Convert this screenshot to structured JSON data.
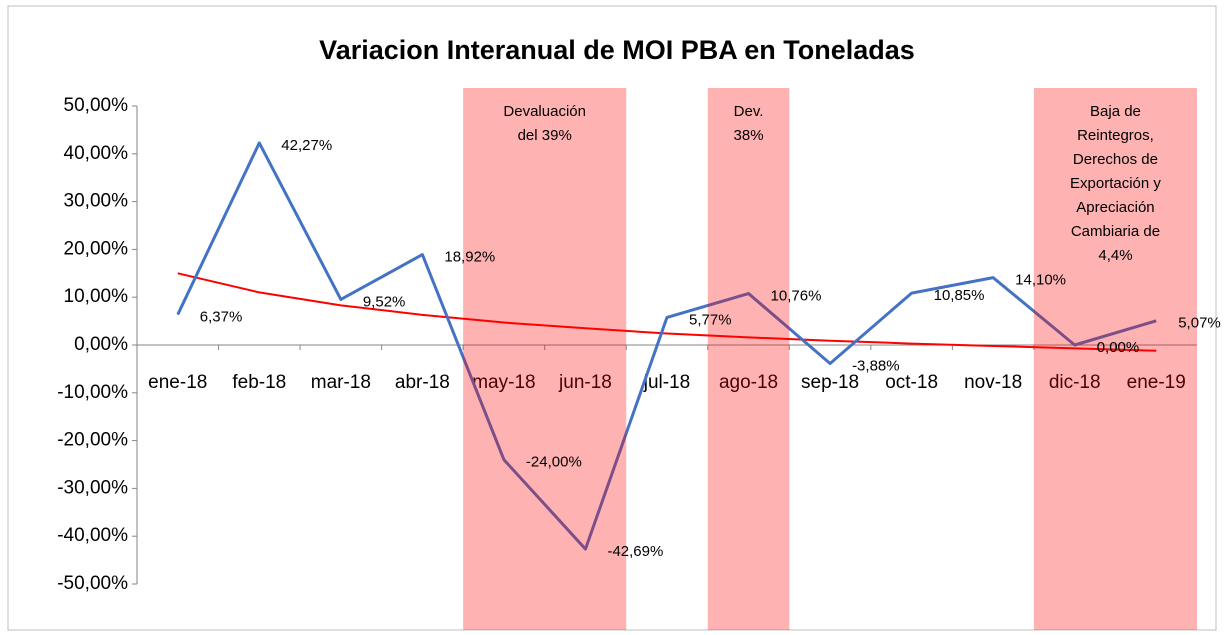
{
  "chart_data": {
    "type": "line",
    "title": "Variacion Interanual de MOI PBA en Toneladas",
    "categories": [
      "ene-18",
      "feb-18",
      "mar-18",
      "abr-18",
      "may-18",
      "jun-18",
      "jul-18",
      "ago-18",
      "sep-18",
      "oct-18",
      "nov-18",
      "dic-18",
      "ene-19"
    ],
    "series": [
      {
        "color": "#4472c4",
        "values": [
          6.37,
          42.27,
          9.52,
          18.92,
          -24.0,
          -42.69,
          5.77,
          10.76,
          -3.88,
          10.85,
          14.1,
          0.0,
          5.07
        ],
        "value_labels": [
          "6,37%",
          "42,27%",
          "9,52%",
          "18,92%",
          "-24,00%",
          "-42,69%",
          "5,77%",
          "10,76%",
          "-3,88%",
          "10,85%",
          "14,10%",
          "0,00%",
          "5,07%"
        ]
      }
    ],
    "trend": {
      "color": "#ff0000",
      "values": [
        15,
        11,
        8.3,
        6.3,
        4.7,
        3.5,
        2.4,
        1.6,
        0.9,
        0.3,
        -0.2,
        -0.7,
        -1.2
      ]
    },
    "shaded_regions": [
      {
        "from": "may-18",
        "to": "jun-18",
        "color": "#ff0000",
        "label": [
          "Devaluación",
          "del 39%"
        ]
      },
      {
        "from": "ago-18",
        "to": "ago-18",
        "color": "#ff0000",
        "label": [
          "Dev.",
          "38%"
        ]
      },
      {
        "from": "dic-18",
        "to": "ene-19",
        "color": "#ff0000",
        "label": [
          "Baja de",
          "Reintegros,",
          "Derechos de",
          "Exportación y",
          "Apreciación",
          "Cambiaria de",
          "4,4%"
        ]
      }
    ],
    "ylim": [
      -50,
      50
    ],
    "yticks": [
      {
        "value": 50,
        "label": "50,00%"
      },
      {
        "value": 40,
        "label": "40,00%"
      },
      {
        "value": 30,
        "label": "30,00%"
      },
      {
        "value": 20,
        "label": "20,00%"
      },
      {
        "value": 10,
        "label": "10,00%"
      },
      {
        "value": 0,
        "label": "0,00%"
      },
      {
        "value": -10,
        "label": "-10,00%"
      },
      {
        "value": -20,
        "label": "-20,00%"
      },
      {
        "value": -30,
        "label": "-30,00%"
      },
      {
        "value": -40,
        "label": "-40,00%"
      },
      {
        "value": -50,
        "label": "-50,00%"
      }
    ]
  }
}
